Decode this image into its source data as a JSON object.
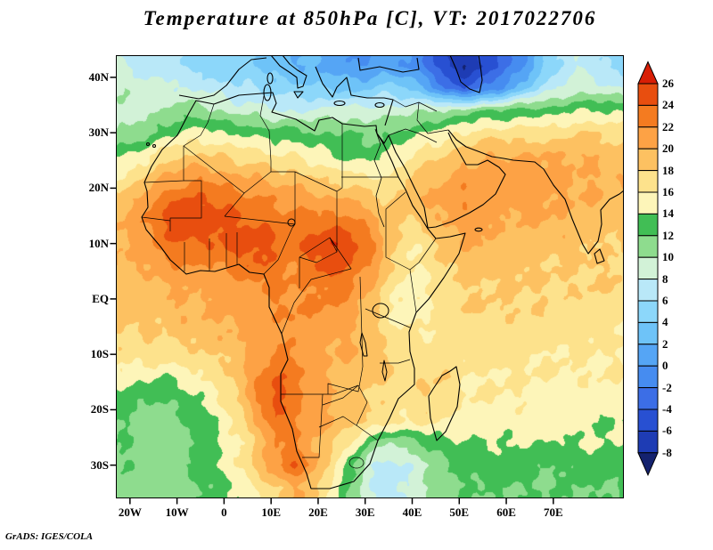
{
  "title": "Temperature at 850hPa [C], VT: 2017022706",
  "credit": "GrADS: IGES/COLA",
  "axes": {
    "lat_ticks": [
      {
        "label": "40N",
        "lat": 40
      },
      {
        "label": "30N",
        "lat": 30
      },
      {
        "label": "20N",
        "lat": 20
      },
      {
        "label": "10N",
        "lat": 10
      },
      {
        "label": "EQ",
        "lat": 0
      },
      {
        "label": "10S",
        "lat": -10
      },
      {
        "label": "20S",
        "lat": -20
      },
      {
        "label": "30S",
        "lat": -30
      }
    ],
    "lon_ticks": [
      {
        "label": "20W",
        "lon": -20
      },
      {
        "label": "10W",
        "lon": -10
      },
      {
        "label": "0",
        "lon": 0
      },
      {
        "label": "10E",
        "lon": 10
      },
      {
        "label": "20E",
        "lon": 20
      },
      {
        "label": "30E",
        "lon": 30
      },
      {
        "label": "40E",
        "lon": 40
      },
      {
        "label": "50E",
        "lon": 50
      },
      {
        "label": "60E",
        "lon": 60
      },
      {
        "label": "70E",
        "lon": 70
      }
    ]
  },
  "chart_data": {
    "type": "heatmap",
    "title": "Temperature at 850hPa [C], VT: 2017022706",
    "variable": "Temperature",
    "level": "850hPa",
    "units": "C",
    "valid_time": "2017022706",
    "map_bounds": {
      "lon_min": -23,
      "lon_max": 85,
      "lat_min": -36,
      "lat_max": 44
    },
    "levels": [
      -8,
      -6,
      -4,
      -2,
      0,
      2,
      4,
      6,
      8,
      10,
      12,
      14,
      16,
      18,
      20,
      22,
      24,
      26
    ],
    "palette": [
      "#14226e",
      "#1e3cb4",
      "#2850d2",
      "#3c6ee6",
      "#468cf0",
      "#55a5f5",
      "#6ec3f8",
      "#8cd7fa",
      "#b9e8f8",
      "#d2f2d7",
      "#8edc8e",
      "#41be55",
      "#fdf5b9",
      "#fde28c",
      "#fdc161",
      "#fda245",
      "#f47b20",
      "#e84e0f",
      "#d81e05"
    ],
    "grid": {
      "lon0": -21,
      "dlon": 4,
      "lat0": 42,
      "dlat": -4,
      "cols": 27,
      "rows": 20
    },
    "values": [
      [
        8,
        7,
        7,
        6,
        5,
        4,
        5,
        4,
        3,
        2,
        2,
        1,
        0,
        0,
        1,
        0,
        -2,
        -6,
        -8,
        -6,
        -3,
        -1,
        3,
        6,
        8,
        7,
        5
      ],
      [
        10,
        9,
        9,
        8,
        8,
        7,
        6,
        6,
        5,
        5,
        4,
        4,
        3,
        4,
        5,
        4,
        2,
        -2,
        -4,
        -2,
        0,
        3,
        6,
        8,
        9,
        9,
        8
      ],
      [
        9,
        9,
        10,
        11,
        11,
        10,
        9,
        9,
        8,
        8,
        8,
        9,
        9,
        9,
        9,
        9,
        10,
        10,
        11,
        12,
        12,
        13,
        13,
        13,
        14,
        14,
        14
      ],
      [
        10,
        11,
        13,
        14,
        15,
        14,
        14,
        13,
        13,
        13,
        12,
        12,
        12,
        11,
        12,
        13,
        14,
        15,
        16,
        17,
        17,
        17,
        17,
        17,
        18,
        18,
        17
      ],
      [
        14,
        15,
        17,
        18,
        18,
        18,
        17,
        17,
        16,
        16,
        15,
        14,
        13,
        13,
        14,
        16,
        17,
        18,
        19,
        20,
        20,
        20,
        20,
        20,
        20,
        20,
        19
      ],
      [
        16,
        18,
        20,
        21,
        22,
        21,
        20,
        20,
        19,
        19,
        18,
        17,
        17,
        16,
        16,
        18,
        19,
        20,
        21,
        21,
        21,
        21,
        21,
        21,
        20,
        20,
        20
      ],
      [
        19,
        21,
        23,
        24,
        24,
        24,
        23,
        22,
        22,
        21,
        21,
        20,
        20,
        19,
        18,
        19,
        20,
        21,
        22,
        22,
        21,
        21,
        21,
        20,
        20,
        20,
        19
      ],
      [
        20,
        22,
        24,
        26,
        25,
        25,
        24,
        24,
        23,
        23,
        23,
        23,
        23,
        21,
        19,
        18,
        19,
        20,
        21,
        21,
        20,
        20,
        20,
        20,
        19,
        19,
        19
      ],
      [
        20,
        21,
        23,
        24,
        24,
        24,
        25,
        25,
        24,
        23,
        25,
        26,
        25,
        23,
        19,
        16,
        17,
        19,
        20,
        20,
        19,
        19,
        19,
        19,
        19,
        18,
        18
      ],
      [
        20,
        20,
        21,
        22,
        22,
        22,
        23,
        24,
        23,
        22,
        24,
        25,
        24,
        22,
        19,
        16,
        16,
        18,
        19,
        19,
        19,
        19,
        18,
        18,
        18,
        18,
        18
      ],
      [
        19,
        19,
        20,
        20,
        20,
        21,
        21,
        22,
        22,
        22,
        22,
        23,
        22,
        20,
        17,
        15,
        16,
        17,
        18,
        18,
        18,
        18,
        18,
        18,
        18,
        18,
        18
      ],
      [
        19,
        19,
        19,
        20,
        20,
        20,
        21,
        21,
        22,
        22,
        22,
        22,
        21,
        19,
        16,
        15,
        16,
        17,
        18,
        18,
        18,
        18,
        18,
        17,
        17,
        17,
        17
      ],
      [
        18,
        18,
        18,
        19,
        19,
        20,
        20,
        21,
        21,
        22,
        21,
        21,
        20,
        19,
        17,
        16,
        16,
        17,
        17,
        17,
        17,
        17,
        17,
        17,
        17,
        17,
        16
      ],
      [
        17,
        17,
        17,
        17,
        18,
        18,
        19,
        21,
        22,
        22,
        21,
        20,
        20,
        19,
        18,
        17,
        17,
        17,
        17,
        17,
        17,
        17,
        16,
        16,
        16,
        16,
        16
      ],
      [
        15,
        15,
        14,
        15,
        16,
        17,
        19,
        22,
        24,
        23,
        21,
        20,
        19,
        19,
        18,
        17,
        18,
        18,
        16,
        16,
        16,
        16,
        16,
        16,
        16,
        16,
        16
      ],
      [
        13,
        12,
        12,
        13,
        14,
        16,
        18,
        22,
        25,
        23,
        21,
        20,
        19,
        18,
        17,
        17,
        18,
        17,
        16,
        16,
        16,
        16,
        15,
        15,
        15,
        15,
        15
      ],
      [
        12,
        11,
        11,
        12,
        13,
        14,
        17,
        20,
        24,
        22,
        21,
        20,
        19,
        18,
        17,
        16,
        17,
        16,
        15,
        15,
        15,
        15,
        15,
        15,
        15,
        14,
        14
      ],
      [
        12,
        11,
        11,
        11,
        12,
        14,
        16,
        18,
        22,
        22,
        20,
        18,
        16,
        12,
        10,
        11,
        12,
        13,
        14,
        14,
        14,
        14,
        14,
        14,
        14,
        14,
        14
      ],
      [
        12,
        11,
        11,
        12,
        13,
        14,
        16,
        19,
        22,
        24,
        21,
        17,
        13,
        8,
        7,
        8,
        10,
        12,
        13,
        13,
        13,
        13,
        12,
        12,
        13,
        13,
        13
      ],
      [
        11,
        11,
        11,
        11,
        12,
        13,
        14,
        16,
        18,
        20,
        19,
        15,
        12,
        8,
        7,
        8,
        10,
        11,
        12,
        12,
        12,
        12,
        12,
        12,
        12,
        12,
        12
      ]
    ]
  }
}
